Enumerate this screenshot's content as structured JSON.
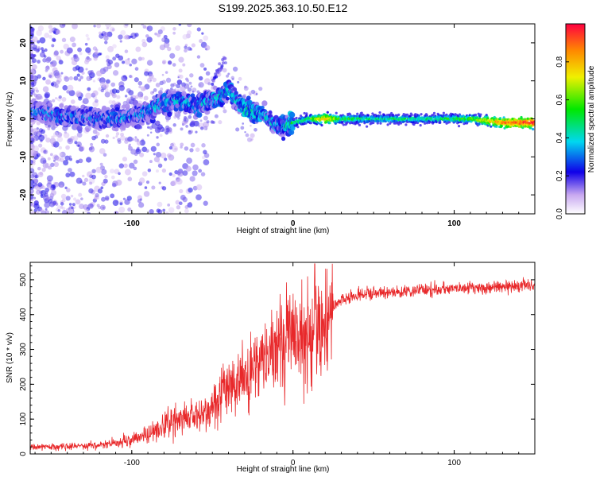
{
  "title": "S199.2025.363.10.50.E12",
  "chart_data": [
    {
      "type": "heatmap",
      "name": "spectrogram",
      "xlabel": "Height of straight line (km)",
      "ylabel": "Frequency (Hz)",
      "xlim": [
        -163,
        150
      ],
      "ylim": [
        -25,
        25
      ],
      "xticks": [
        -100,
        0,
        100
      ],
      "yticks": [
        -20,
        -10,
        0,
        10,
        20
      ],
      "colorbar": {
        "label": "Normalized spectral amplitude",
        "range": [
          0,
          1
        ],
        "ticks": [
          0.0,
          0.2,
          0.4,
          0.6,
          0.8
        ]
      },
      "ridge": {
        "heights": [
          -163,
          -150,
          -135,
          -120,
          -105,
          -90,
          -80,
          -70,
          -60,
          -50,
          -45,
          -40,
          -37,
          -33,
          -30,
          -25,
          -20,
          -15,
          -10,
          -5,
          0,
          10,
          20,
          30,
          50,
          70,
          90,
          110,
          130,
          150
        ],
        "frequency_hz": [
          2,
          1,
          0.5,
          0,
          0,
          2,
          4,
          5,
          3,
          5,
          6,
          8,
          6,
          4,
          3,
          2,
          1,
          0,
          -2,
          -2,
          -1,
          0,
          0,
          0,
          0,
          0,
          0,
          0,
          -1,
          -1
        ],
        "amplitude": [
          0.22,
          0.25,
          0.25,
          0.25,
          0.25,
          0.27,
          0.3,
          0.3,
          0.28,
          0.3,
          0.32,
          0.32,
          0.3,
          0.33,
          0.38,
          0.36,
          0.3,
          0.32,
          0.3,
          0.32,
          0.45,
          0.55,
          0.85,
          0.55,
          0.5,
          0.5,
          0.5,
          0.6,
          0.9,
          1.0
        ]
      }
    },
    {
      "type": "line",
      "name": "snr",
      "xlabel": "Height of straight line (km)",
      "ylabel": "SNR (10 * v/v)",
      "xlim": [
        -163,
        150
      ],
      "ylim": [
        0,
        550
      ],
      "xticks": [
        -100,
        0,
        100
      ],
      "yticks": [
        0,
        100,
        200,
        300,
        400,
        500
      ],
      "color": "#e8282a",
      "envelope": {
        "heights": [
          -163,
          -140,
          -120,
          -100,
          -90,
          -80,
          -70,
          -60,
          -50,
          -40,
          -30,
          -20,
          -10,
          -5,
          0,
          5,
          10,
          15,
          20,
          25,
          30,
          40,
          60,
          80,
          100,
          120,
          150
        ],
        "snr": [
          20,
          22,
          25,
          40,
          55,
          80,
          100,
          110,
          130,
          200,
          230,
          250,
          300,
          330,
          350,
          300,
          350,
          400,
          380,
          420,
          440,
          455,
          465,
          470,
          475,
          478,
          485
        ]
      }
    }
  ]
}
